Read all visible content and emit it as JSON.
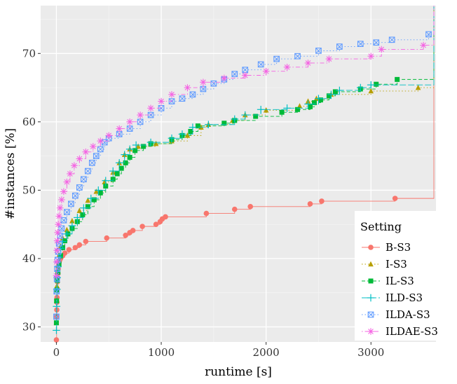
{
  "chart_data": {
    "type": "step",
    "xlabel": "runtime [s]",
    "ylabel": "#instances [%]",
    "xlim": [
      -150,
      3620
    ],
    "ylim": [
      27.8,
      77
    ],
    "xticks": [
      0,
      1000,
      2000,
      3000
    ],
    "yticks": [
      30,
      40,
      50,
      60,
      70
    ],
    "xtick_labels": [
      "0",
      "1000",
      "2000",
      "3000"
    ],
    "ytick_labels": [
      "30",
      "40",
      "50",
      "60",
      "70"
    ],
    "grid": true,
    "legend": {
      "title": "Setting",
      "position": "bottom-right"
    },
    "series": [
      {
        "name": "B-S3",
        "color": "#F8766D",
        "shape": "circle",
        "linetype": "solid",
        "end_y": 77,
        "points": [
          [
            0,
            28.1
          ],
          [
            2,
            31.5
          ],
          [
            4,
            32.5
          ],
          [
            5,
            33.6
          ],
          [
            6,
            34.3
          ],
          [
            8,
            35.5
          ],
          [
            10,
            36.6
          ],
          [
            12,
            37.2
          ],
          [
            15,
            37.8
          ],
          [
            18,
            38.5
          ],
          [
            20,
            39.0
          ],
          [
            25,
            39.4
          ],
          [
            30,
            39.7
          ],
          [
            40,
            40.0
          ],
          [
            60,
            40.4
          ],
          [
            80,
            40.8
          ],
          [
            120,
            41.3
          ],
          [
            180,
            41.6
          ],
          [
            220,
            42.0
          ],
          [
            280,
            42.5
          ],
          [
            480,
            43.0
          ],
          [
            660,
            43.4
          ],
          [
            700,
            43.8
          ],
          [
            730,
            44.1
          ],
          [
            820,
            44.7
          ],
          [
            950,
            45.0
          ],
          [
            990,
            45.4
          ],
          [
            1010,
            45.8
          ],
          [
            1040,
            46.1
          ],
          [
            1430,
            46.6
          ],
          [
            1700,
            47.2
          ],
          [
            1850,
            47.6
          ],
          [
            2420,
            48.0
          ],
          [
            2530,
            48.4
          ],
          [
            3230,
            48.8
          ]
        ]
      },
      {
        "name": "I-S3",
        "color": "#B79F00",
        "shape": "triangle",
        "linetype": "dotted",
        "end_y": 77,
        "points": [
          [
            0,
            30.6
          ],
          [
            2,
            33.8
          ],
          [
            5,
            36.0
          ],
          [
            8,
            37.5
          ],
          [
            15,
            39.0
          ],
          [
            25,
            40.5
          ],
          [
            40,
            41.8
          ],
          [
            60,
            43.0
          ],
          [
            100,
            44.2
          ],
          [
            150,
            45.5
          ],
          [
            220,
            47.0
          ],
          [
            300,
            48.5
          ],
          [
            380,
            49.8
          ],
          [
            460,
            51.2
          ],
          [
            540,
            52.6
          ],
          [
            600,
            54.0
          ],
          [
            650,
            55.2
          ],
          [
            700,
            56.0
          ],
          [
            780,
            56.4
          ],
          [
            950,
            56.8
          ],
          [
            1100,
            57.2
          ],
          [
            1250,
            58.0
          ],
          [
            1380,
            59.2
          ],
          [
            1450,
            59.6
          ],
          [
            1680,
            60.2
          ],
          [
            1800,
            61.0
          ],
          [
            2000,
            61.7
          ],
          [
            2320,
            62.3
          ],
          [
            2400,
            63.0
          ],
          [
            2480,
            63.4
          ],
          [
            2620,
            64.0
          ],
          [
            3000,
            64.5
          ],
          [
            3450,
            65.0
          ]
        ]
      },
      {
        "name": "IL-S3",
        "color": "#00BA38",
        "shape": "square",
        "linetype": "dashed",
        "end_y": 77,
        "points": [
          [
            0,
            30.6
          ],
          [
            2,
            33.8
          ],
          [
            5,
            35.4
          ],
          [
            10,
            36.8
          ],
          [
            15,
            38.0
          ],
          [
            25,
            39.2
          ],
          [
            40,
            40.4
          ],
          [
            60,
            41.6
          ],
          [
            80,
            42.6
          ],
          [
            110,
            43.6
          ],
          [
            150,
            44.4
          ],
          [
            200,
            45.4
          ],
          [
            250,
            46.4
          ],
          [
            300,
            47.6
          ],
          [
            360,
            48.6
          ],
          [
            420,
            49.6
          ],
          [
            470,
            50.6
          ],
          [
            540,
            51.6
          ],
          [
            580,
            52.4
          ],
          [
            620,
            53.2
          ],
          [
            660,
            54.0
          ],
          [
            700,
            54.8
          ],
          [
            750,
            55.8
          ],
          [
            830,
            56.4
          ],
          [
            900,
            56.8
          ],
          [
            1100,
            57.4
          ],
          [
            1200,
            58.0
          ],
          [
            1280,
            58.6
          ],
          [
            1350,
            59.4
          ],
          [
            1600,
            59.8
          ],
          [
            1700,
            60.2
          ],
          [
            1900,
            60.8
          ],
          [
            2150,
            61.4
          ],
          [
            2300,
            61.8
          ],
          [
            2420,
            62.2
          ],
          [
            2460,
            62.8
          ],
          [
            2520,
            63.2
          ],
          [
            2600,
            63.8
          ],
          [
            2660,
            64.4
          ],
          [
            2900,
            64.8
          ],
          [
            3050,
            65.5
          ],
          [
            3250,
            66.2
          ]
        ]
      },
      {
        "name": "ILD-S3",
        "color": "#00BFC4",
        "shape": "plus",
        "linetype": "longdash",
        "end_y": 77,
        "points": [
          [
            0,
            29.5
          ],
          [
            2,
            33.0
          ],
          [
            5,
            35.5
          ],
          [
            8,
            37.2
          ],
          [
            15,
            38.8
          ],
          [
            25,
            40.2
          ],
          [
            40,
            41.5
          ],
          [
            60,
            42.5
          ],
          [
            100,
            43.6
          ],
          [
            150,
            44.8
          ],
          [
            200,
            46.0
          ],
          [
            260,
            47.4
          ],
          [
            330,
            48.8
          ],
          [
            400,
            50.0
          ],
          [
            470,
            51.4
          ],
          [
            540,
            52.8
          ],
          [
            600,
            54.0
          ],
          [
            650,
            55.2
          ],
          [
            700,
            56.0
          ],
          [
            760,
            56.6
          ],
          [
            900,
            57.0
          ],
          [
            1100,
            57.6
          ],
          [
            1200,
            58.2
          ],
          [
            1300,
            59.2
          ],
          [
            1450,
            59.6
          ],
          [
            1700,
            60.4
          ],
          [
            1800,
            61.0
          ],
          [
            1950,
            61.8
          ],
          [
            2200,
            62.0
          ],
          [
            2400,
            62.6
          ],
          [
            2500,
            63.4
          ],
          [
            2620,
            64.0
          ],
          [
            2700,
            64.6
          ],
          [
            2900,
            65.0
          ],
          [
            3000,
            65.4
          ]
        ]
      },
      {
        "name": "ILDA-S3",
        "color": "#619CFF",
        "shape": "square-x",
        "linetype": "dotted",
        "end_y": 77,
        "points": [
          [
            0,
            31.5
          ],
          [
            2,
            35.2
          ],
          [
            5,
            37.0
          ],
          [
            8,
            38.5
          ],
          [
            12,
            39.8
          ],
          [
            18,
            41.0
          ],
          [
            25,
            42.2
          ],
          [
            35,
            43.3
          ],
          [
            50,
            44.4
          ],
          [
            70,
            45.6
          ],
          [
            100,
            46.8
          ],
          [
            140,
            48.0
          ],
          [
            180,
            49.2
          ],
          [
            220,
            50.4
          ],
          [
            260,
            51.6
          ],
          [
            300,
            52.8
          ],
          [
            340,
            54.0
          ],
          [
            380,
            55.0
          ],
          [
            420,
            56.0
          ],
          [
            460,
            57.0
          ],
          [
            500,
            57.6
          ],
          [
            600,
            58.2
          ],
          [
            700,
            59.0
          ],
          [
            800,
            60.0
          ],
          [
            900,
            61.0
          ],
          [
            1000,
            62.0
          ],
          [
            1100,
            63.0
          ],
          [
            1200,
            63.4
          ],
          [
            1300,
            64.0
          ],
          [
            1400,
            64.8
          ],
          [
            1500,
            65.6
          ],
          [
            1600,
            66.2
          ],
          [
            1700,
            67.0
          ],
          [
            1800,
            67.6
          ],
          [
            1950,
            68.4
          ],
          [
            2100,
            69.2
          ],
          [
            2300,
            69.6
          ],
          [
            2500,
            70.4
          ],
          [
            2700,
            71.0
          ],
          [
            2900,
            71.4
          ],
          [
            3050,
            71.6
          ],
          [
            3200,
            72.0
          ],
          [
            3550,
            72.8
          ]
        ]
      },
      {
        "name": "ILDAE-S3",
        "color": "#F564E3",
        "shape": "star",
        "linetype": "dotdash",
        "end_y": 77,
        "points": [
          [
            0,
            37.5
          ],
          [
            2,
            39.5
          ],
          [
            5,
            41.2
          ],
          [
            8,
            42.6
          ],
          [
            12,
            43.8
          ],
          [
            18,
            45.0
          ],
          [
            25,
            46.2
          ],
          [
            35,
            47.4
          ],
          [
            50,
            48.6
          ],
          [
            70,
            49.8
          ],
          [
            100,
            51.2
          ],
          [
            130,
            52.4
          ],
          [
            170,
            53.6
          ],
          [
            220,
            54.6
          ],
          [
            280,
            55.6
          ],
          [
            350,
            56.4
          ],
          [
            420,
            57.2
          ],
          [
            500,
            58.0
          ],
          [
            600,
            59.0
          ],
          [
            700,
            60.0
          ],
          [
            800,
            61.0
          ],
          [
            900,
            62.0
          ],
          [
            1000,
            63.0
          ],
          [
            1100,
            64.0
          ],
          [
            1250,
            65.0
          ],
          [
            1400,
            65.8
          ],
          [
            1600,
            66.4
          ],
          [
            1800,
            66.8
          ],
          [
            2000,
            67.4
          ],
          [
            2200,
            68.0
          ],
          [
            2400,
            68.6
          ],
          [
            2600,
            69.2
          ],
          [
            3000,
            69.6
          ],
          [
            3100,
            70.6
          ],
          [
            3500,
            71.2
          ]
        ]
      }
    ]
  }
}
